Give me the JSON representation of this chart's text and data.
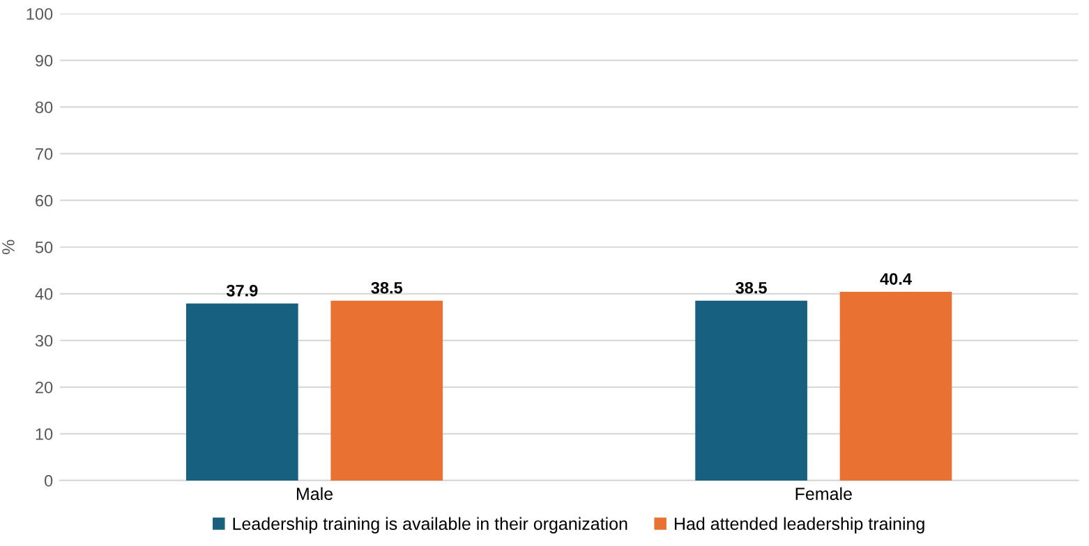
{
  "chart_data": {
    "type": "bar",
    "ylabel": "%",
    "categories": [
      "Male",
      "Female"
    ],
    "series": [
      {
        "name": "Leadership training is available in their organization",
        "color": "#18607f",
        "values": [
          37.9,
          38.5
        ]
      },
      {
        "name": "Had attended leadership training",
        "color": "#e97132",
        "values": [
          38.5,
          40.4
        ]
      }
    ],
    "ylim": [
      0,
      100
    ],
    "yticks": [
      0,
      10,
      20,
      30,
      40,
      50,
      60,
      70,
      80,
      90,
      100
    ],
    "grid": "y",
    "legend": "bottom",
    "data_labels": true
  }
}
